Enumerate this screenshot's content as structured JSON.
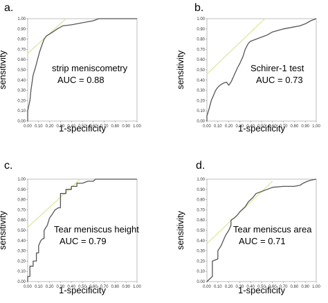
{
  "chart_data": [
    {
      "panel_label": "a.",
      "type": "line",
      "xlabel": "1-specificity",
      "ylabel": "sensitivity",
      "xlim": [
        0,
        1
      ],
      "ylim": [
        0,
        1
      ],
      "xticks": [
        "0.00",
        "0.10",
        "0.20",
        "0.30",
        "0.40",
        "0.50",
        "0.60",
        "0.70",
        "0.80",
        "0.90",
        "1.00"
      ],
      "yticks": [
        "0.00",
        "0.10",
        "0.20",
        "0.30",
        "0.40",
        "0.50",
        "0.60",
        "0.70",
        "0.80",
        "0.90",
        "1.00"
      ],
      "annotation_lines": [
        "strip meniscometry",
        "AUC = 0.88"
      ],
      "grid": false,
      "reference_line": {
        "x": [
          0,
          0.35
        ],
        "y": [
          0.66,
          1.0
        ],
        "color": "#d8e89a"
      },
      "series": [
        {
          "color": "#555555",
          "x": [
            0,
            0,
            0.02,
            0.03,
            0.05,
            0.07,
            0.09,
            0.11,
            0.13,
            0.15,
            0.17,
            0.2,
            0.23,
            0.27,
            0.32,
            0.4,
            0.5,
            0.6,
            0.65,
            0.8,
            1.0
          ],
          "y": [
            0,
            0.1,
            0.2,
            0.3,
            0.45,
            0.52,
            0.6,
            0.68,
            0.74,
            0.8,
            0.83,
            0.85,
            0.87,
            0.9,
            0.93,
            0.94,
            0.96,
            0.98,
            1.0,
            1.0,
            1.0
          ]
        }
      ]
    },
    {
      "panel_label": "b.",
      "type": "line",
      "xlabel": "1-specificity",
      "ylabel": "sensitivity",
      "xlim": [
        0,
        1
      ],
      "ylim": [
        0,
        1
      ],
      "xticks": [
        "0.00",
        "0.10",
        "0.20",
        "0.30",
        "0.40",
        "0.50",
        "0.60",
        "0.70",
        "0.80",
        "0.90",
        "1.00"
      ],
      "yticks": [
        "0.00",
        "0.10",
        "0.20",
        "0.30",
        "0.40",
        "0.50",
        "0.60",
        "0.70",
        "0.80",
        "0.90",
        "1.00"
      ],
      "annotation_lines": [
        "Schirer-1 test",
        "AUC = 0.73"
      ],
      "grid": false,
      "reference_line": {
        "x": [
          0,
          0.53
        ],
        "y": [
          0.46,
          1.0
        ],
        "color": "#d8e89a"
      },
      "series": [
        {
          "color": "#555555",
          "x": [
            0,
            0,
            0.02,
            0.04,
            0.06,
            0.08,
            0.1,
            0.12,
            0.15,
            0.18,
            0.2,
            0.22,
            0.25,
            0.28,
            0.3,
            0.33,
            0.35,
            0.38,
            0.4,
            0.45,
            0.5,
            0.55,
            0.6,
            0.7,
            0.8,
            0.85,
            0.9,
            0.95,
            1.0
          ],
          "y": [
            0,
            0.05,
            0.12,
            0.2,
            0.25,
            0.3,
            0.33,
            0.35,
            0.37,
            0.38,
            0.35,
            0.38,
            0.45,
            0.52,
            0.56,
            0.63,
            0.7,
            0.76,
            0.78,
            0.8,
            0.82,
            0.84,
            0.87,
            0.9,
            0.92,
            0.93,
            0.95,
            0.98,
            1.0
          ]
        }
      ]
    },
    {
      "panel_label": "c.",
      "type": "line",
      "xlabel": "1-specificity",
      "ylabel": "sensitivity",
      "xlim": [
        0,
        1
      ],
      "ylim": [
        0,
        1
      ],
      "xticks": [
        "0.00",
        "0.10",
        "0.20",
        "0.30",
        "0.40",
        "0.50",
        "0.60",
        "0.70",
        "0.80",
        "0.90",
        "1.00"
      ],
      "yticks": [
        "0.00",
        "0.10",
        "0.20",
        "0.30",
        "0.40",
        "0.50",
        "0.60",
        "0.70",
        "0.80",
        "0.90",
        "1.00"
      ],
      "annotation_lines": [
        "Tear meniscus height",
        "AUC = 0.79"
      ],
      "grid": false,
      "reference_line": {
        "x": [
          0,
          0.48
        ],
        "y": [
          0.53,
          1.0
        ],
        "color": "#d8e89a"
      },
      "series": [
        {
          "color": "#555555",
          "x": [
            0,
            0,
            0.02,
            0.02,
            0.05,
            0.05,
            0.08,
            0.08,
            0.1,
            0.1,
            0.12,
            0.14,
            0.15,
            0.15,
            0.18,
            0.2,
            0.22,
            0.25,
            0.28,
            0.3,
            0.3,
            0.35,
            0.35,
            0.4,
            0.4,
            0.45,
            0.45,
            0.5,
            0.55,
            0.6,
            0.62,
            1.0
          ],
          "y": [
            0,
            0.05,
            0.05,
            0.15,
            0.15,
            0.2,
            0.2,
            0.28,
            0.28,
            0.35,
            0.4,
            0.42,
            0.42,
            0.5,
            0.55,
            0.62,
            0.65,
            0.7,
            0.72,
            0.72,
            0.86,
            0.86,
            0.9,
            0.9,
            0.93,
            0.93,
            0.96,
            0.96,
            0.98,
            0.98,
            1.0,
            1.0
          ]
        }
      ]
    },
    {
      "panel_label": "d.",
      "type": "line",
      "xlabel": "1-specificity",
      "ylabel": "sensitivity",
      "xlim": [
        0,
        1
      ],
      "ylim": [
        0,
        1
      ],
      "xticks": [
        "0.00",
        "0.10",
        "0.20",
        "0.30",
        "0.40",
        "0.50",
        "0.60",
        "0.70",
        "0.80",
        "0.90",
        "1.00"
      ],
      "yticks": [
        "0.00",
        "0.10",
        "0.20",
        "0.30",
        "0.40",
        "0.50",
        "0.60",
        "0.70",
        "0.80",
        "0.90",
        "1.00"
      ],
      "annotation_lines": [
        "Tear meniscus area",
        "AUC = 0.71"
      ],
      "grid": false,
      "reference_line": {
        "x": [
          0,
          0.6
        ],
        "y": [
          0.37,
          0.98
        ],
        "color": "#d8e89a"
      },
      "series": [
        {
          "color": "#555555",
          "x": [
            0,
            0.05,
            0.05,
            0.1,
            0.1,
            0.13,
            0.15,
            0.17,
            0.2,
            0.22,
            0.22,
            0.25,
            0.28,
            0.3,
            0.32,
            0.35,
            0.38,
            0.42,
            0.45,
            0.5,
            0.55,
            0.6,
            0.7,
            0.8,
            0.85,
            0.88,
            0.92,
            0.95,
            1.0
          ],
          "y": [
            0,
            0.05,
            0.2,
            0.22,
            0.3,
            0.35,
            0.4,
            0.45,
            0.5,
            0.55,
            0.6,
            0.62,
            0.65,
            0.68,
            0.7,
            0.73,
            0.78,
            0.82,
            0.86,
            0.88,
            0.9,
            0.92,
            0.93,
            0.93,
            0.94,
            0.96,
            0.98,
            0.99,
            1.0
          ]
        }
      ]
    }
  ]
}
